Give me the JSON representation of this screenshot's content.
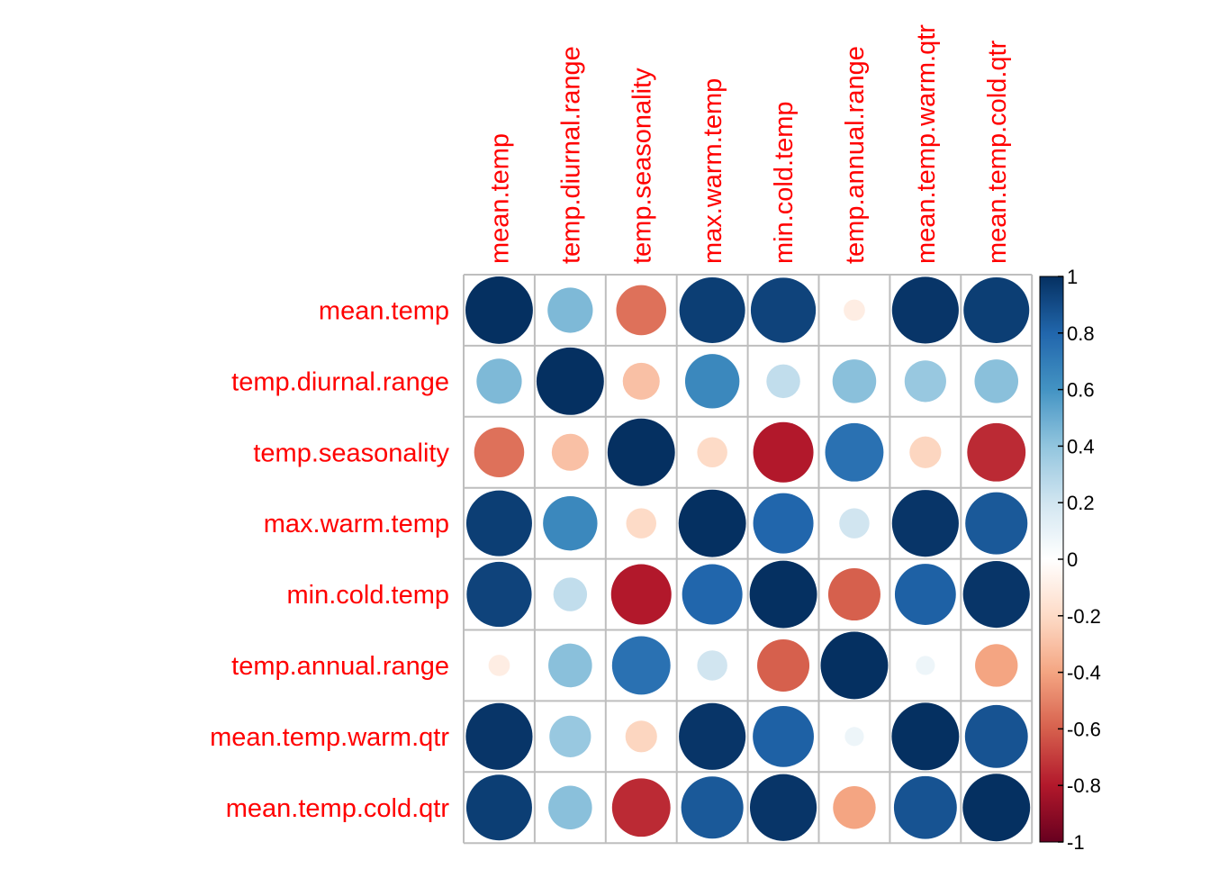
{
  "chart_data": {
    "type": "heatmap",
    "variables": [
      "mean.temp",
      "temp.diurnal.range",
      "temp.seasonality",
      "max.warm.temp",
      "min.cold.temp",
      "temp.annual.range",
      "mean.temp.warm.qtr",
      "mean.temp.cold.qtr"
    ],
    "matrix": [
      [
        1.0,
        0.45,
        -0.55,
        0.95,
        0.93,
        -0.1,
        0.98,
        0.95
      ],
      [
        0.45,
        1.0,
        -0.3,
        0.65,
        0.25,
        0.42,
        0.38,
        0.42
      ],
      [
        -0.55,
        -0.3,
        1.0,
        -0.2,
        -0.8,
        0.75,
        -0.22,
        -0.75
      ],
      [
        0.95,
        0.65,
        -0.2,
        1.0,
        0.8,
        0.2,
        0.98,
        0.85
      ],
      [
        0.93,
        0.25,
        -0.8,
        0.8,
        1.0,
        -0.6,
        0.82,
        0.98
      ],
      [
        -0.1,
        0.42,
        0.75,
        0.2,
        -0.6,
        1.0,
        0.08,
        -0.4
      ],
      [
        0.98,
        0.38,
        -0.22,
        0.98,
        0.82,
        0.08,
        1.0,
        0.87
      ],
      [
        0.95,
        0.42,
        -0.75,
        0.85,
        0.98,
        -0.4,
        0.87,
        1.0
      ]
    ],
    "color_range": [
      -1,
      1
    ],
    "colorbar_ticks": [
      "1",
      "0.8",
      "0.6",
      "0.4",
      "0.2",
      "0",
      "-0.2",
      "-0.4",
      "-0.6",
      "-0.8",
      "-1"
    ],
    "colorbar_values": [
      1,
      0.8,
      0.6,
      0.4,
      0.2,
      0,
      -0.2,
      -0.4,
      -0.6,
      -0.8,
      -1
    ],
    "palette": [
      "#67001F",
      "#B2182B",
      "#D6604D",
      "#F4A582",
      "#FDDBC7",
      "#FFFFFF",
      "#D1E5F0",
      "#92C5DE",
      "#4393C3",
      "#2166AC",
      "#053061"
    ],
    "label_color": "#FF0000",
    "grid_color": "#BEBEBE",
    "legend_position": "right",
    "shape": "circle"
  }
}
